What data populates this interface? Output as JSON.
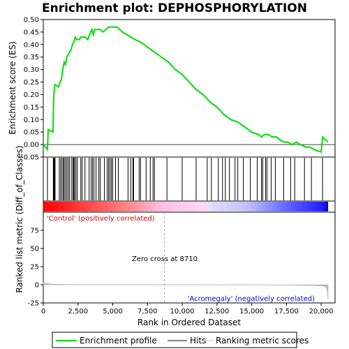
{
  "chart_data": {
    "title": "Enrichment plot: DEPHOSPHORYLATION",
    "x_axis": {
      "label": "Rank in Ordered Dataset",
      "lim": [
        0,
        21000
      ],
      "ticks": [
        0,
        2500,
        5000,
        7500,
        10000,
        12500,
        15000,
        17500,
        20000
      ],
      "tick_labels": [
        "0",
        "2,500",
        "5,000",
        "7,500",
        "10,000",
        "12,500",
        "15,000",
        "17,500",
        "20,000"
      ]
    },
    "top_panel": {
      "type": "line",
      "ylabel": "Enrichment score (ES)",
      "ylim": [
        -0.05,
        0.5
      ],
      "yticks": [
        -0.05,
        0.0,
        0.05,
        0.1,
        0.15,
        0.2,
        0.25,
        0.3,
        0.35,
        0.4,
        0.45,
        0.5
      ],
      "ytick_labels": [
        "-0.05",
        "0.00",
        "0.05",
        "0.10",
        "0.15",
        "0.20",
        "0.25",
        "0.30",
        "0.35",
        "0.40",
        "0.45",
        "0.50"
      ],
      "series": [
        {
          "name": "Enrichment profile",
          "color": "#00dd00",
          "x": [
            0,
            300,
            350,
            700,
            720,
            750,
            800,
            850,
            1100,
            1200,
            1300,
            1400,
            1500,
            1600,
            1700,
            1800,
            1900,
            2000,
            2100,
            2200,
            2300,
            2400,
            2500,
            2600,
            2700,
            2800,
            3000,
            3200,
            3400,
            3500,
            3600,
            3700,
            3900,
            4100,
            4300,
            4500,
            4700,
            4900,
            5100,
            5300,
            5500,
            5700,
            6000,
            6300,
            6600,
            7000,
            7500,
            8000,
            8500,
            9000,
            9500,
            10000,
            10500,
            11000,
            11500,
            12000,
            12500,
            13000,
            13500,
            14000,
            14500,
            15000,
            15500,
            15700,
            15900,
            16200,
            16500,
            16800,
            17000,
            17300,
            17600,
            17900,
            18200,
            18500,
            18900,
            19200,
            19500,
            20000,
            20100,
            20300,
            20500
          ],
          "y": [
            0.0,
            -0.02,
            0.06,
            0.05,
            0.1,
            0.19,
            0.23,
            0.24,
            0.23,
            0.25,
            0.26,
            0.3,
            0.33,
            0.32,
            0.35,
            0.36,
            0.37,
            0.38,
            0.4,
            0.41,
            0.43,
            0.42,
            0.42,
            0.42,
            0.43,
            0.43,
            0.43,
            0.42,
            0.45,
            0.46,
            0.44,
            0.46,
            0.46,
            0.46,
            0.45,
            0.46,
            0.47,
            0.47,
            0.47,
            0.47,
            0.46,
            0.45,
            0.44,
            0.43,
            0.42,
            0.41,
            0.39,
            0.37,
            0.35,
            0.33,
            0.3,
            0.28,
            0.25,
            0.22,
            0.2,
            0.17,
            0.15,
            0.12,
            0.1,
            0.09,
            0.07,
            0.05,
            0.04,
            0.03,
            0.04,
            0.04,
            0.03,
            0.03,
            0.02,
            0.01,
            0.01,
            0.0,
            0.01,
            0.0,
            -0.01,
            -0.01,
            -0.02,
            -0.03,
            0.03,
            0.02,
            0.01
          ]
        }
      ]
    },
    "hits_panel": {
      "name": "Hits",
      "color": "#000000",
      "positions": [
        300,
        720,
        760,
        800,
        850,
        1150,
        1250,
        1350,
        1450,
        1500,
        1600,
        1700,
        1800,
        1900,
        2050,
        2150,
        2200,
        2250,
        2350,
        2450,
        2700,
        2800,
        3000,
        3300,
        3450,
        3550,
        3650,
        3800,
        4000,
        4100,
        4400,
        4600,
        4700,
        4800,
        4900,
        5000,
        5200,
        5400,
        6100,
        6300,
        6450,
        6500,
        6900,
        7000,
        7400,
        7700,
        7900,
        8000,
        8900,
        10000,
        11000,
        11800,
        12100,
        12600,
        12900,
        13100,
        13400,
        13800,
        14000,
        14400,
        14900,
        15400,
        15700,
        15800,
        16000,
        16100,
        16400,
        16700,
        17300,
        17800,
        18100,
        18800,
        19300,
        20100
      ]
    },
    "bottom_panel": {
      "type": "area",
      "ylabel": "Ranked list metric (Diff_of_Classes)",
      "ylim": [
        -25,
        100
      ],
      "yticks": [
        -25,
        0,
        25,
        50,
        75
      ],
      "ytick_labels": [
        "-25",
        "0",
        "25",
        "50",
        "75"
      ],
      "series": [
        {
          "name": "Ranking metric scores",
          "color": "#c0c0c0",
          "x": [
            0,
            100,
            300,
            600,
            1000,
            2000,
            3000,
            5000,
            8000,
            8710,
            12000,
            16000,
            18000,
            19000,
            19500,
            19800,
            20000,
            20200,
            20350,
            20450,
            20500
          ],
          "y": [
            4,
            2.5,
            1.5,
            1.0,
            0.6,
            0.3,
            0.15,
            0.05,
            0.01,
            0.0,
            -0.05,
            -0.2,
            -0.5,
            -0.8,
            -1.0,
            -1.3,
            -1.6,
            -2.2,
            -4.0,
            -9.0,
            -20.0
          ]
        }
      ],
      "annotations": {
        "positive": "'Control' (positively correlated)",
        "negative": "'Acromegaly' (negatively correlated)",
        "zero_cross": "Zero cross at 8710",
        "zero_cross_x": 8710
      }
    },
    "color_bar": {
      "positive_color": "#ff0000",
      "negative_color": "#0000ff",
      "n": 20500
    },
    "legend": {
      "position": "bottom",
      "entries": [
        {
          "name": "Enrichment profile",
          "color": "#00dd00"
        },
        {
          "name": "Hits",
          "color": "#000000"
        },
        {
          "name": "Ranking metric scores",
          "color": "#c0c0c0"
        }
      ]
    }
  }
}
